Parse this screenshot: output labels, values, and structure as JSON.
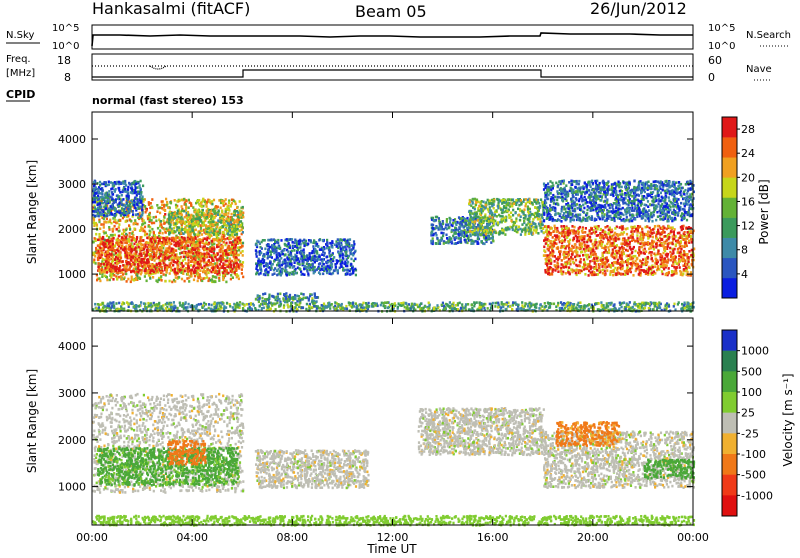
{
  "header": {
    "station": "Hankasalmi (fitACF)",
    "beam": "Beam 05",
    "date": "26/Jun/2012"
  },
  "top_panels": {
    "nsky_label": "N.Sky",
    "nsky_ticks": [
      "10^5",
      "10^0"
    ],
    "nsearch_label": "N.Search",
    "nsearch_right_ticks": [
      "10^5",
      "10^0"
    ],
    "freq_label": "Freq.",
    "freq_unit": "[MHz]",
    "freq_ticks": [
      "18",
      "8"
    ],
    "nave_label": "Nave",
    "nave_ticks": [
      "60",
      "0"
    ],
    "cpid_label": "CPID",
    "cpid_text": "normal (fast stereo) 153"
  },
  "chart_data": [
    {
      "type": "heatmap",
      "title": "",
      "xlabel": "",
      "ylabel": "Slant Range [km]",
      "x_ticks": [
        "00:00",
        "04:00",
        "08:00",
        "12:00",
        "16:00",
        "20:00",
        "00:00"
      ],
      "xlim_hours": [
        0,
        24
      ],
      "y_ticks": [
        1000,
        2000,
        3000,
        4000
      ],
      "ylim": [
        180,
        4600
      ],
      "colorbar": {
        "label": "Power [dB]",
        "ticks": [
          4,
          8,
          12,
          16,
          20,
          24,
          28
        ],
        "range": [
          0,
          30
        ],
        "colors": [
          "#0a1ee0",
          "#2a56c0",
          "#3e8aa8",
          "#3b9a5c",
          "#63b236",
          "#c6d61a",
          "#f0a020",
          "#f06010",
          "#e01818"
        ]
      },
      "scatter_regions": [
        {
          "t0": 0.0,
          "t1": 6.0,
          "r0": 850,
          "r1": 2700,
          "value": 20
        },
        {
          "t0": 0.0,
          "t1": 2.0,
          "r0": 2300,
          "r1": 3100,
          "value": 6
        },
        {
          "t0": 0.2,
          "t1": 5.8,
          "r0": 1050,
          "r1": 1850,
          "value": 26
        },
        {
          "t0": 3.0,
          "t1": 6.0,
          "r0": 1900,
          "r1": 2450,
          "value": 16
        },
        {
          "t0": 6.5,
          "t1": 10.5,
          "r0": 1000,
          "r1": 1800,
          "value": 6
        },
        {
          "t0": 6.5,
          "t1": 9.0,
          "r0": 400,
          "r1": 600,
          "value": 10
        },
        {
          "t0": 13.5,
          "t1": 16.0,
          "r0": 1700,
          "r1": 2300,
          "value": 8
        },
        {
          "t0": 15.0,
          "t1": 18.0,
          "r0": 1900,
          "r1": 2700,
          "value": 14
        },
        {
          "t0": 18.0,
          "t1": 24.0,
          "r0": 1000,
          "r1": 2100,
          "value": 25
        },
        {
          "t0": 18.0,
          "t1": 24.0,
          "r0": 2200,
          "r1": 3100,
          "value": 7
        },
        {
          "t0": 0.0,
          "t1": 24.0,
          "r0": 200,
          "r1": 400,
          "value": 12
        }
      ]
    },
    {
      "type": "heatmap",
      "title": "",
      "xlabel": "Time UT",
      "ylabel": "Slant Range [km]",
      "x_ticks": [
        "00:00",
        "04:00",
        "08:00",
        "12:00",
        "16:00",
        "20:00",
        "00:00"
      ],
      "xlim_hours": [
        0,
        24
      ],
      "y_ticks": [
        1000,
        2000,
        3000,
        4000
      ],
      "ylim": [
        180,
        4600
      ],
      "colorbar": {
        "label": "Velocity [m s⁻¹]",
        "ticks": [
          1000,
          500,
          100,
          25,
          -25,
          -100,
          -500,
          -1000
        ],
        "colors": [
          "#1a30c8",
          "#2a8050",
          "#4aa838",
          "#80cc30",
          "#bebeb4",
          "#f0b030",
          "#f07818",
          "#f03a18",
          "#e01010"
        ]
      },
      "scatter_regions": [
        {
          "t0": 0.0,
          "t1": 6.0,
          "r0": 900,
          "r1": 3000,
          "value": 0
        },
        {
          "t0": 0.2,
          "t1": 5.8,
          "r0": 1050,
          "r1": 1850,
          "value": 150
        },
        {
          "t0": 3.0,
          "t1": 4.5,
          "r0": 1500,
          "r1": 2000,
          "value": -300
        },
        {
          "t0": 6.5,
          "t1": 11.0,
          "r0": 1000,
          "r1": 1800,
          "value": 0
        },
        {
          "t0": 13.0,
          "t1": 18.0,
          "r0": 1700,
          "r1": 2700,
          "value": 0
        },
        {
          "t0": 18.0,
          "t1": 24.0,
          "r0": 1000,
          "r1": 2200,
          "value": 0
        },
        {
          "t0": 18.5,
          "t1": 21.0,
          "r0": 1900,
          "r1": 2400,
          "value": -150
        },
        {
          "t0": 22.0,
          "t1": 24.0,
          "r0": 1200,
          "r1": 1600,
          "value": 300
        },
        {
          "t0": 0.0,
          "t1": 24.0,
          "r0": 200,
          "r1": 400,
          "value": 60
        }
      ]
    }
  ]
}
